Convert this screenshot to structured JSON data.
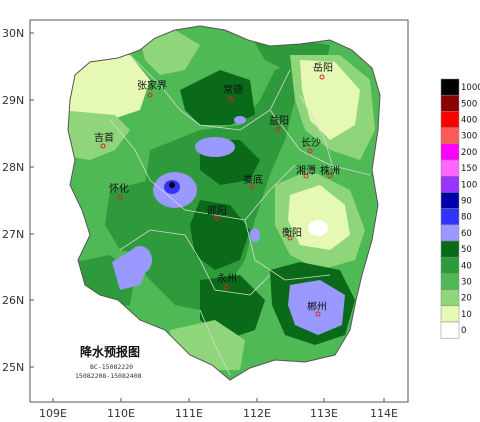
{
  "map": {
    "title": "降水预报图",
    "code_line_1": "BC-15082220",
    "code_line_2": "15082208-15082408",
    "lat_labels": [
      "30N",
      "29N",
      "28N",
      "27N",
      "26N",
      "25N"
    ],
    "lon_labels": [
      "109E",
      "110E",
      "111E",
      "112E",
      "113E",
      "114E"
    ],
    "cities": [
      {
        "id": "yueyang",
        "name": "岳阳"
      },
      {
        "id": "zhangjiajie",
        "name": "张家界"
      },
      {
        "id": "changde",
        "name": "常德"
      },
      {
        "id": "yiyang",
        "name": "益阳"
      },
      {
        "id": "jishou",
        "name": "吉首"
      },
      {
        "id": "changsha",
        "name": "长沙"
      },
      {
        "id": "xiangtan",
        "name": "湘潭"
      },
      {
        "id": "zhuzhou",
        "name": "株洲"
      },
      {
        "id": "loudi",
        "name": "娄底"
      },
      {
        "id": "huaihua",
        "name": "怀化"
      },
      {
        "id": "shaoyang",
        "name": "邵阳"
      },
      {
        "id": "hengyang",
        "name": "衡阳"
      },
      {
        "id": "yongzhou",
        "name": "永州"
      },
      {
        "id": "chenzhou",
        "name": "郴州"
      }
    ]
  },
  "legend": {
    "levels": [
      "1000",
      "500",
      "400",
      "300",
      "200",
      "150",
      "100",
      "90",
      "80",
      "60",
      "50",
      "40",
      "30",
      "20",
      "10",
      "0"
    ],
    "colors": [
      "#000000",
      "#8b0000",
      "#ff0000",
      "#ff5a5a",
      "#ff00ff",
      "#ff66ff",
      "#9933ff",
      "#0000aa",
      "#3333ff",
      "#9999ff",
      "#0a6a1a",
      "#2e9a3c",
      "#4fba55",
      "#8fd67a",
      "#e6f9b4",
      "#ffffff"
    ]
  }
}
